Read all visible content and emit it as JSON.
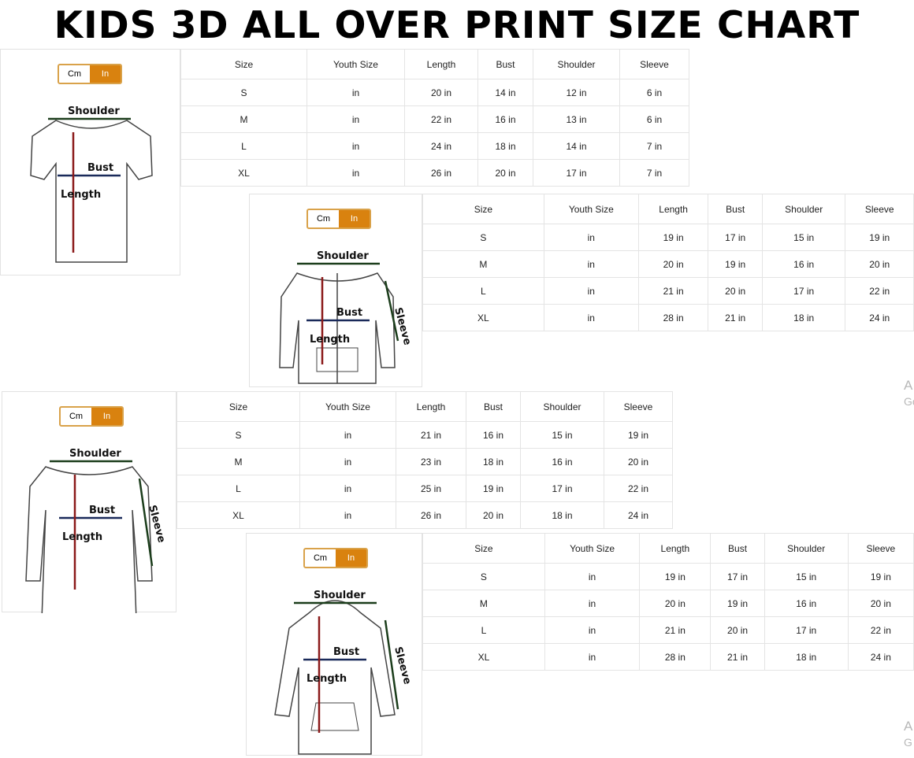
{
  "title": "KIDS 3D ALL OVER PRINT SIZE CHART",
  "colors": {
    "toggle_active": "#d9820f",
    "toggle_border": "#d9a24a",
    "length_arrow": "#8b1a1a",
    "bust_arrow": "#1a2a5a",
    "shoulder_arrow": "#1b3d1b"
  },
  "toggle": {
    "cm": "Cm",
    "in": "In",
    "selected": "In"
  },
  "labels": {
    "shoulder": "Shoulder",
    "bust": "Bust",
    "length": "Length",
    "sleeve": "Sleeve"
  },
  "columns": [
    "Size",
    "Youth Size",
    "Length",
    "Bust",
    "Shoulder",
    "Sleeve"
  ],
  "charts": [
    {
      "garment": "t-shirt",
      "rows": [
        [
          "S",
          "in",
          "20 in",
          "14 in",
          "12 in",
          "6 in"
        ],
        [
          "M",
          "in",
          "22 in",
          "16 in",
          "13 in",
          "6 in"
        ],
        [
          "L",
          "in",
          "24 in",
          "18 in",
          "14 in",
          "7 in"
        ],
        [
          "XL",
          "in",
          "26 in",
          "20 in",
          "17 in",
          "7 in"
        ]
      ]
    },
    {
      "garment": "zip-hoodie",
      "rows": [
        [
          "S",
          "in",
          "19 in",
          "17 in",
          "15 in",
          "19 in"
        ],
        [
          "M",
          "in",
          "20 in",
          "19 in",
          "16 in",
          "20 in"
        ],
        [
          "L",
          "in",
          "21 in",
          "20 in",
          "17 in",
          "22 in"
        ],
        [
          "XL",
          "in",
          "28 in",
          "21 in",
          "18 in",
          "24 in"
        ]
      ]
    },
    {
      "garment": "long-sleeve",
      "rows": [
        [
          "S",
          "in",
          "21 in",
          "16 in",
          "15 in",
          "19 in"
        ],
        [
          "M",
          "in",
          "23 in",
          "18 in",
          "16 in",
          "20 in"
        ],
        [
          "L",
          "in",
          "25 in",
          "19 in",
          "17 in",
          "22 in"
        ],
        [
          "XL",
          "in",
          "26 in",
          "20 in",
          "18 in",
          "24 in"
        ]
      ]
    },
    {
      "garment": "hoodie",
      "rows": [
        [
          "S",
          "in",
          "19 in",
          "17 in",
          "15 in",
          "19 in"
        ],
        [
          "M",
          "in",
          "20 in",
          "19 in",
          "16 in",
          "20 in"
        ],
        [
          "L",
          "in",
          "21 in",
          "20 in",
          "17 in",
          "22 in"
        ],
        [
          "XL",
          "in",
          "28 in",
          "21 in",
          "18 in",
          "24 in"
        ]
      ]
    }
  ],
  "watermarks": [
    {
      "line1": "A",
      "line2": "Go"
    },
    {
      "line1": "A",
      "line2": "G"
    }
  ]
}
